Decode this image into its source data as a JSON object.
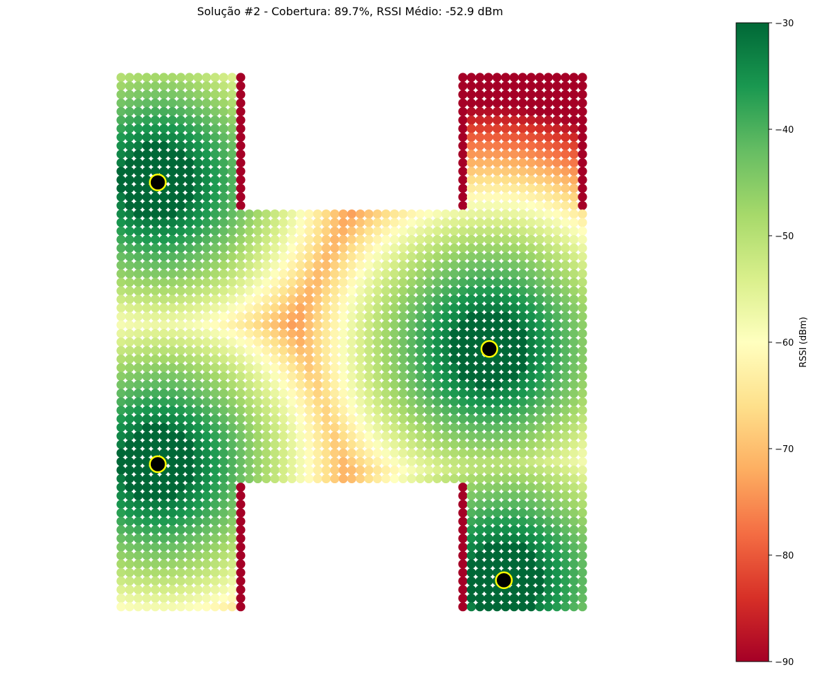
{
  "chart_data": {
    "type": "scatter",
    "title": "Solução #2 - Cobertura: 89.7%, RSSI Médio: -52.9 dBm",
    "colorbar": {
      "label": "RSSI (dBm)",
      "ticks": [
        -30,
        -40,
        -50,
        -60,
        -70,
        -80,
        -90
      ],
      "tick_labels": [
        "−30",
        "−40",
        "−50",
        "−60",
        "−70",
        "−80",
        "−90"
      ],
      "range": [
        -90,
        -30
      ],
      "colormap": [
        "#a50026",
        "#d73027",
        "#f46d43",
        "#fdae61",
        "#fee08b",
        "#ffffbf",
        "#d9ef8b",
        "#a6d96a",
        "#66bd63",
        "#1a9850",
        "#006837"
      ]
    },
    "floor_plan": {
      "shape": "H",
      "grid_columns": 54,
      "grid_rows": 63,
      "regions": [
        {
          "name": "left-wing",
          "x": [
            0,
            14
          ],
          "y": [
            0,
            62
          ]
        },
        {
          "name": "center-bridge",
          "x": [
            14,
            40
          ],
          "y": [
            16,
            47
          ]
        },
        {
          "name": "right-wing",
          "x": [
            40,
            54
          ],
          "y": [
            0,
            62
          ]
        }
      ]
    },
    "access_points": [
      {
        "x": 4.3,
        "y": 12.3,
        "rssi_peak": -30
      },
      {
        "x": 4.3,
        "y": 45.3,
        "rssi_peak": -30
      },
      {
        "x": 43.1,
        "y": 31.8,
        "rssi_peak": -30
      },
      {
        "x": 44.8,
        "y": 58.9,
        "rssi_peak": -30
      }
    ],
    "ap_style": {
      "fill": "#000000",
      "edge": "#ffff00"
    },
    "grid": false,
    "axes_visible": false
  }
}
